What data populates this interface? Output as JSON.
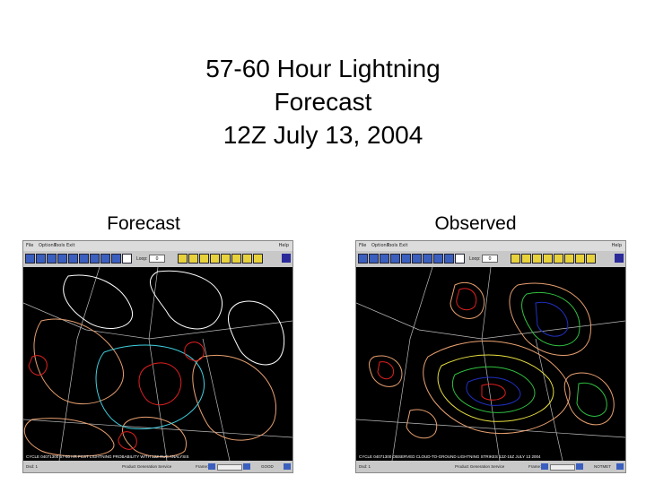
{
  "slide": {
    "title_lines": [
      "57-60 Hour Lightning",
      "Forecast",
      "12Z July 13, 2004"
    ],
    "left_label": "Forecast",
    "right_label": "Observed"
  },
  "left_window": {
    "menu": [
      "File",
      "Options",
      "Tools",
      "Exit"
    ],
    "menu_right": "Help",
    "loop_label": "Loop:",
    "loop_value": "0",
    "map_caption": "CYCLE 04071300 57-60 HR FCST LIGHTNING PROBABILITY WITH 12Z RUC ANALYSIS",
    "status_left": "Dsd: 1",
    "status_center": "Product Generation Service",
    "status_frame": "Frame:",
    "status_right": "GOOD"
  },
  "right_window": {
    "menu": [
      "File",
      "Options",
      "Tools",
      "Exit"
    ],
    "menu_right": "Help",
    "loop_label": "Loop:",
    "loop_value": "0",
    "map_caption": "CYCLE 04071300 OBSERVED CLOUD-TO-GROUND LIGHTNING STRIKES 12Z-15Z JULY 13 2004",
    "status_left": "Dsd: 1",
    "status_center": "Product Generation Service",
    "status_frame": "Frame:",
    "status_right": "NOTMET"
  },
  "colors": {
    "contour_white": "#ffffff",
    "contour_orange": "#e8a070",
    "contour_red": "#e02020",
    "contour_cyan": "#40d0e0",
    "contour_blue": "#2030c0",
    "contour_green": "#30c040",
    "contour_yellow": "#e8e040"
  }
}
